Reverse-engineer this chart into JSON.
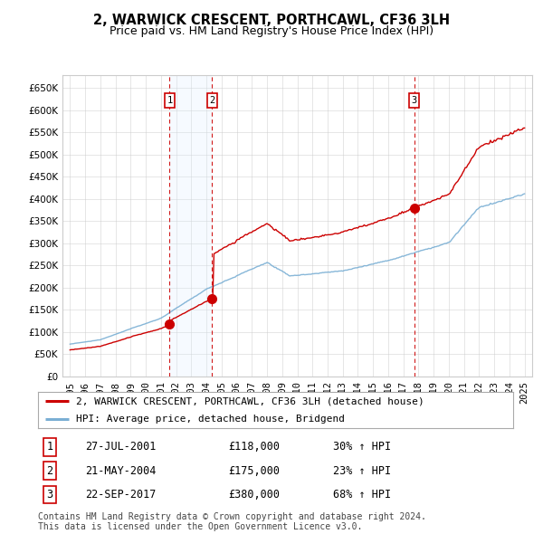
{
  "title": "2, WARWICK CRESCENT, PORTHCAWL, CF36 3LH",
  "subtitle": "Price paid vs. HM Land Registry's House Price Index (HPI)",
  "ylim": [
    0,
    680000
  ],
  "yticks": [
    0,
    50000,
    100000,
    150000,
    200000,
    250000,
    300000,
    350000,
    400000,
    450000,
    500000,
    550000,
    600000,
    650000
  ],
  "ytick_labels": [
    "£0",
    "£50K",
    "£100K",
    "£150K",
    "£200K",
    "£250K",
    "£300K",
    "£350K",
    "£400K",
    "£450K",
    "£500K",
    "£550K",
    "£600K",
    "£650K"
  ],
  "xlim_start": 1994.5,
  "xlim_end": 2025.5,
  "sales": [
    {
      "num": 1,
      "year": 2001.57,
      "price": 118000,
      "label": "27-JUL-2001",
      "amount": "£118,000",
      "pct": "30% ↑ HPI"
    },
    {
      "num": 2,
      "year": 2004.38,
      "price": 175000,
      "label": "21-MAY-2004",
      "amount": "£175,000",
      "pct": "23% ↑ HPI"
    },
    {
      "num": 3,
      "year": 2017.72,
      "price": 380000,
      "label": "22-SEP-2017",
      "amount": "£380,000",
      "pct": "68% ↑ HPI"
    }
  ],
  "line_property_color": "#cc0000",
  "line_hpi_color": "#7aafd4",
  "background_color": "#ffffff",
  "plot_bg_color": "#ffffff",
  "grid_color": "#cccccc",
  "shade_color": "#ddeeff",
  "legend_property": "2, WARWICK CRESCENT, PORTHCAWL, CF36 3LH (detached house)",
  "legend_hpi": "HPI: Average price, detached house, Bridgend",
  "footer1": "Contains HM Land Registry data © Crown copyright and database right 2024.",
  "footer2": "This data is licensed under the Open Government Licence v3.0.",
  "title_fontsize": 10.5,
  "subtitle_fontsize": 9,
  "tick_fontsize": 7.5,
  "legend_fontsize": 8,
  "table_fontsize": 8.5,
  "footer_fontsize": 7
}
